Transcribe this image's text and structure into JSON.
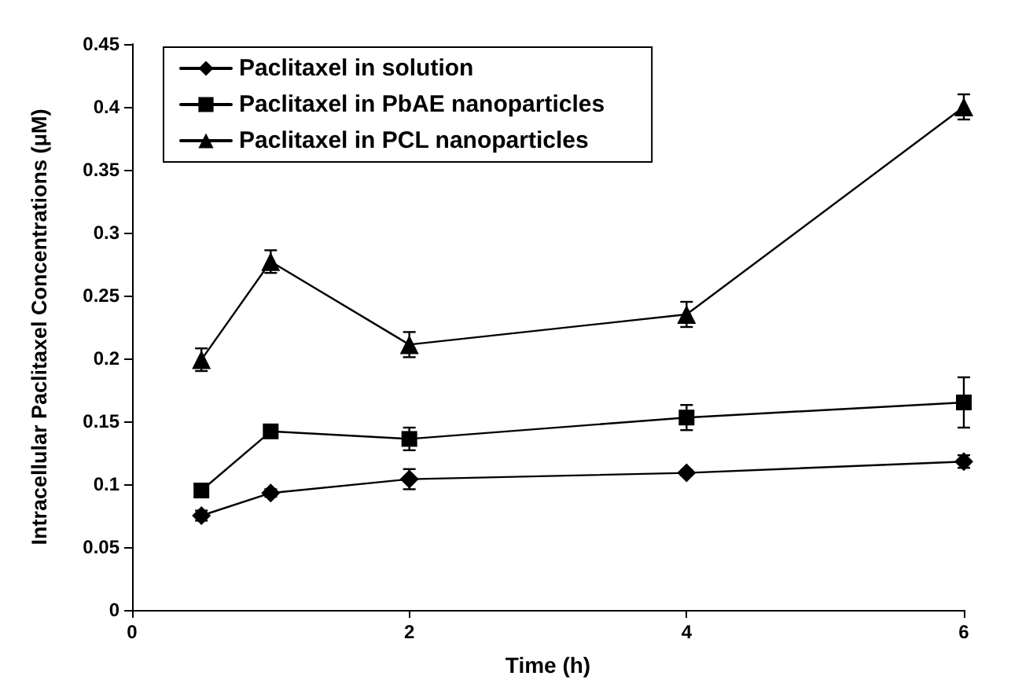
{
  "chart_data": {
    "type": "line",
    "xlabel": "Time (h)",
    "ylabel": "Intracellular Paclitaxel Concentrations (μM)",
    "x": [
      0.5,
      1,
      2,
      4,
      6
    ],
    "series": [
      {
        "name": "Paclitaxel in solution",
        "color": "#000000",
        "marker": "diamond",
        "values": [
          0.075,
          0.093,
          0.104,
          0.109,
          0.118
        ],
        "errors": [
          0.004,
          0.003,
          0.008,
          0.002,
          0.005
        ]
      },
      {
        "name": "Paclitaxel in PbAE nanoparticles",
        "color": "#000000",
        "marker": "square",
        "values": [
          0.095,
          0.142,
          0.136,
          0.153,
          0.165
        ],
        "errors": [
          0.003,
          0.004,
          0.009,
          0.01,
          0.02
        ]
      },
      {
        "name": "Paclitaxel in PCL nanoparticles",
        "color": "#000000",
        "marker": "triangle",
        "values": [
          0.199,
          0.277,
          0.211,
          0.235,
          0.4
        ],
        "errors": [
          0.009,
          0.009,
          0.01,
          0.01,
          0.01
        ]
      }
    ],
    "xlim": [
      0,
      6
    ],
    "xticks": [
      0,
      2,
      4,
      6
    ],
    "ylim": [
      0,
      0.45
    ],
    "yticks": [
      0,
      0.05,
      0.1,
      0.15,
      0.2,
      0.25,
      0.3,
      0.35,
      0.4,
      0.45
    ],
    "grid": false,
    "legend": "top left",
    "line_style": "solid"
  }
}
